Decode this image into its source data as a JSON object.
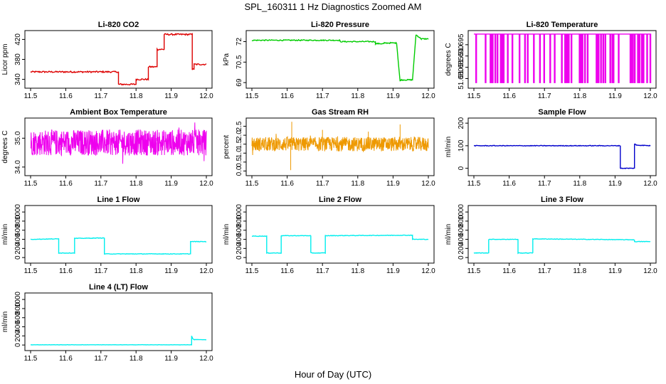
{
  "figure": {
    "title": "SPL_160311  1 Hz Diagnostics Zoomed AM",
    "xlabel": "Hour of Day (UTC)"
  },
  "chart_data": [
    {
      "type": "line",
      "title": "Li-820 CO2",
      "ylabel": "Licor ppm",
      "color": "#dd0000",
      "xlim": [
        11.5,
        12.0
      ],
      "ylim": [
        328,
        432
      ],
      "xticks": [
        "11.5",
        "11.6",
        "11.7",
        "11.8",
        "11.9",
        "12.0"
      ],
      "yticks": [
        340,
        380,
        420
      ],
      "noise": 1.5,
      "x": [
        11.5,
        11.75,
        11.75,
        11.8,
        11.8,
        11.835,
        11.835,
        11.86,
        11.86,
        11.88,
        11.88,
        11.96,
        11.96,
        11.965,
        11.965,
        12.0
      ],
      "y": [
        355,
        355,
        330,
        330,
        340,
        340,
        365,
        365,
        400,
        400,
        430,
        430,
        360,
        360,
        370,
        370
      ]
    },
    {
      "type": "line",
      "title": "Li-820 Pressure",
      "ylabel": "kPa",
      "color": "#00cc00",
      "xlim": [
        11.5,
        12.0
      ],
      "ylim": [
        68.8,
        72.6
      ],
      "xticks": [
        "11.5",
        "11.6",
        "11.7",
        "11.8",
        "11.9",
        "12.0"
      ],
      "yticks": [
        69.0,
        70.5,
        72.0
      ],
      "noise": 0.04,
      "x": [
        11.5,
        11.75,
        11.75,
        11.85,
        11.85,
        11.875,
        11.875,
        11.91,
        11.92,
        11.92,
        11.955,
        11.965,
        11.97,
        11.98,
        12.0
      ],
      "y": [
        72.1,
        72.1,
        72.0,
        72.0,
        71.85,
        71.85,
        71.9,
        71.9,
        69.1,
        69.2,
        69.2,
        72.5,
        72.4,
        72.2,
        72.2
      ]
    },
    {
      "type": "line",
      "title": "Li-820 Temperature",
      "ylabel": "degrees C",
      "color": "#ee00ee",
      "xlim": [
        11.5,
        12.0
      ],
      "ylim": [
        51.677,
        51.7
      ],
      "xticks": [
        "11.5",
        "11.6",
        "11.7",
        "11.8",
        "11.9",
        "12.0"
      ],
      "yticks": [
        "51.680",
        "51.685",
        "51.690",
        "51.695"
      ],
      "yticks_num": [
        51.68,
        51.685,
        51.69,
        51.695
      ],
      "levels": [
        51.6782,
        51.6997
      ],
      "pattern": "toggle"
    },
    {
      "type": "line",
      "title": "Ambient Box Temperature",
      "ylabel": "degrees C",
      "color": "#ee00ee",
      "xlim": [
        11.5,
        12.0
      ],
      "ylim": [
        33.8,
        35.6
      ],
      "xticks": [
        "11.5",
        "11.6",
        "11.7",
        "11.8",
        "11.9",
        "12.0"
      ],
      "yticks": [
        "34.0",
        "35.0"
      ],
      "yticks_num": [
        34.0,
        35.0
      ],
      "band": [
        34.4,
        35.3
      ],
      "pattern": "noise"
    },
    {
      "type": "line",
      "title": "Gas Stream RH",
      "ylabel": "percent",
      "color": "#ee9900",
      "xlim": [
        11.5,
        12.0
      ],
      "ylim": [
        -0.1,
        2.8
      ],
      "xticks": [
        "11.5",
        "11.6",
        "11.7",
        "11.8",
        "11.9",
        "12.0"
      ],
      "yticks": [
        "0.0",
        "0.5",
        "1.0",
        "1.5",
        "2.0",
        "2.5"
      ],
      "yticks_num": [
        0.0,
        0.5,
        1.0,
        1.5,
        2.0,
        2.5
      ],
      "band": [
        1.1,
        1.9
      ],
      "spikes": [
        [
          11.61,
          0.05
        ],
        [
          11.613,
          2.75
        ],
        [
          11.92,
          2.6
        ],
        [
          11.7,
          2.3
        ],
        [
          11.83,
          2.2
        ]
      ],
      "pattern": "noise"
    },
    {
      "type": "line",
      "title": "Sample Flow",
      "ylabel": "ml/min",
      "color": "#0000cc",
      "xlim": [
        11.5,
        12.0
      ],
      "ylim": [
        -20,
        210
      ],
      "xticks": [
        "11.5",
        "11.6",
        "11.7",
        "11.8",
        "11.9",
        "12.0"
      ],
      "yticks": [
        0,
        100,
        200
      ],
      "noise": 1.5,
      "x": [
        11.5,
        11.915,
        11.915,
        11.955,
        11.955,
        11.96,
        12.0
      ],
      "y": [
        100,
        100,
        0,
        0,
        108,
        103,
        100
      ]
    },
    {
      "type": "line",
      "title": "Line 1 Flow",
      "ylabel": "ml/min",
      "color": "#00eeee",
      "xlim": [
        11.5,
        12.0
      ],
      "ylim": [
        -60,
        1080
      ],
      "xticks": [
        "11.5",
        "11.6",
        "11.7",
        "11.8",
        "11.9",
        "12.0"
      ],
      "yticks": [
        0,
        200,
        400,
        600,
        800,
        1000
      ],
      "noise": 6,
      "x": [
        11.5,
        11.58,
        11.58,
        11.625,
        11.625,
        11.71,
        11.71,
        11.955,
        11.955,
        12.0
      ],
      "y": [
        400,
        410,
        100,
        100,
        420,
        430,
        80,
        80,
        350,
        350
      ]
    },
    {
      "type": "line",
      "title": "Line 2 Flow",
      "ylabel": "ml/min",
      "color": "#00eeee",
      "xlim": [
        11.5,
        12.0
      ],
      "ylim": [
        -60,
        1080
      ],
      "xticks": [
        "11.5",
        "11.6",
        "11.7",
        "11.8",
        "11.9",
        "12.0"
      ],
      "yticks": [
        0,
        200,
        400,
        600,
        800,
        1000
      ],
      "noise": 6,
      "x": [
        11.5,
        11.542,
        11.542,
        11.583,
        11.583,
        11.667,
        11.667,
        11.708,
        11.708,
        11.955,
        11.955,
        12.0
      ],
      "y": [
        470,
        470,
        100,
        100,
        480,
        480,
        100,
        100,
        480,
        490,
        400,
        400
      ]
    },
    {
      "type": "line",
      "title": "Line 3 Flow",
      "ylabel": "ml/min",
      "color": "#00eeee",
      "xlim": [
        11.5,
        12.0
      ],
      "ylim": [
        -60,
        1080
      ],
      "xticks": [
        "11.5",
        "11.6",
        "11.7",
        "11.8",
        "11.9",
        "12.0"
      ],
      "yticks": [
        0,
        200,
        400,
        600,
        800,
        1000
      ],
      "noise": 6,
      "x": [
        11.5,
        11.542,
        11.542,
        11.625,
        11.625,
        11.667,
        11.667,
        11.955,
        11.955,
        12.0
      ],
      "y": [
        100,
        100,
        400,
        400,
        100,
        100,
        410,
        390,
        350,
        350
      ]
    },
    {
      "type": "line",
      "title": "Line 4 (LT) Flow",
      "ylabel": "ml/min",
      "color": "#00eeee",
      "xlim": [
        11.5,
        12.0
      ],
      "ylim": [
        -60,
        1080
      ],
      "xticks": [
        "11.5",
        "11.6",
        "11.7",
        "11.8",
        "11.9",
        "12.0"
      ],
      "yticks": [
        0,
        200,
        400,
        600,
        800,
        1000
      ],
      "noise": 2,
      "x": [
        11.5,
        11.958,
        11.958,
        11.962,
        11.965,
        12.0
      ],
      "y": [
        5,
        5,
        200,
        130,
        120,
        115
      ]
    }
  ]
}
